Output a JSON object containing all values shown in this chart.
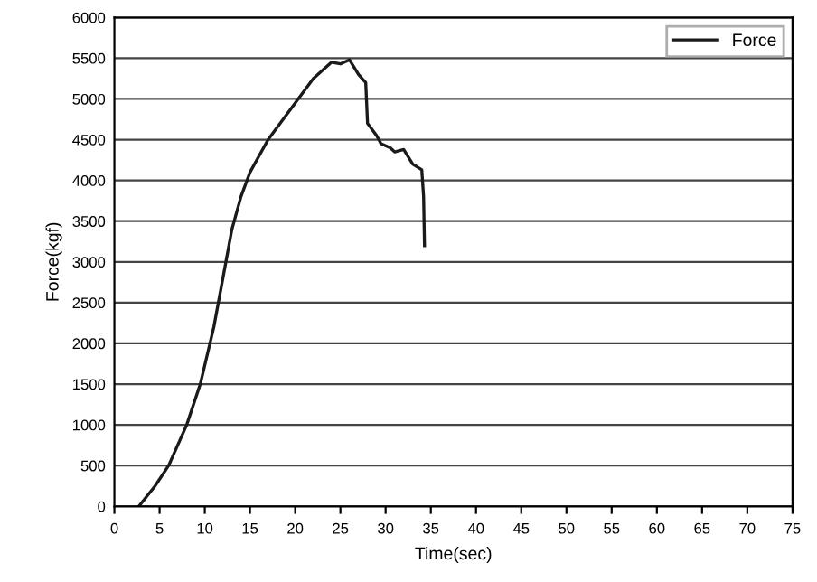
{
  "chart_data": {
    "type": "line",
    "xlabel": "Time(sec)",
    "ylabel": "Force(kgf)",
    "xlim": [
      0,
      75
    ],
    "xticks": [
      0,
      5,
      10,
      15,
      20,
      25,
      30,
      35,
      40,
      45,
      50,
      55,
      60,
      65,
      70,
      75
    ],
    "ylim": [
      0,
      6000
    ],
    "yticks": [
      0,
      500,
      1000,
      1500,
      2000,
      2500,
      3000,
      3500,
      4000,
      4500,
      5000,
      5500,
      6000
    ],
    "grid": "y",
    "legend": "top right",
    "marker": "none",
    "line_style": "solid",
    "series": [
      {
        "name": "Force",
        "color": "#1a1a1a",
        "x": [
          2.7,
          4.5,
          6,
          8,
          9.5,
          11,
          12,
          13,
          14,
          15,
          17,
          20,
          22,
          24,
          25,
          26,
          27,
          27.8,
          28,
          29,
          29.5,
          30.5,
          31,
          32,
          33,
          34,
          34.2,
          34.3
        ],
        "values": [
          0,
          250,
          500,
          1000,
          1500,
          2200,
          2800,
          3400,
          3800,
          4100,
          4500,
          4950,
          5250,
          5450,
          5430,
          5480,
          5300,
          5200,
          4700,
          4550,
          4450,
          4400,
          4350,
          4380,
          4200,
          4130,
          3800,
          3200
        ]
      }
    ]
  }
}
